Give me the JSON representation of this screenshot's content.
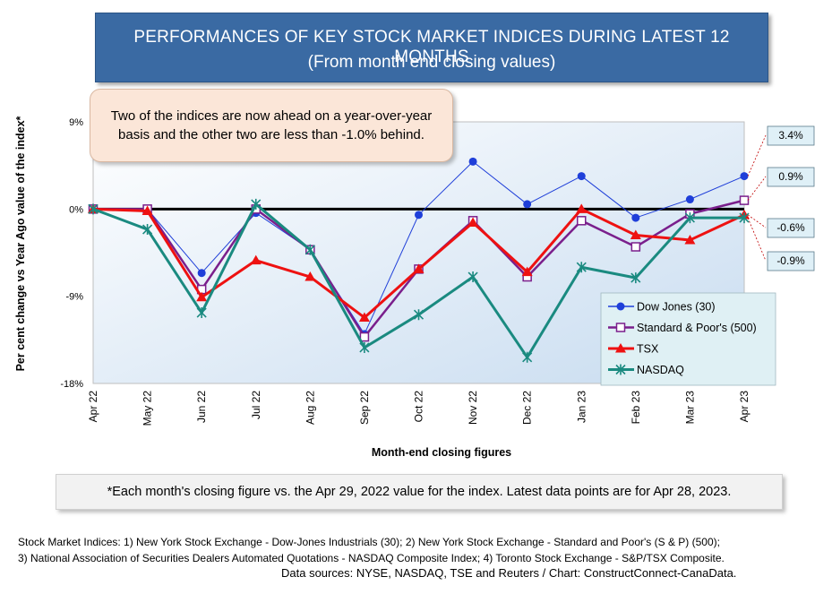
{
  "header": {
    "title": "PERFORMANCES OF KEY STOCK MARKET INDICES DURING LATEST 12 MONTHS",
    "subtitle": "(From month end closing values)"
  },
  "callout": {
    "text": "Two of the indices are now ahead on a year-over-year basis and the other two are less than -1.0% behind."
  },
  "chart_data": {
    "type": "line",
    "ylabel": "Per cent change vs Year Ago value of the index*",
    "xlabel": "Month-end closing figures",
    "ylim": [
      -18,
      9
    ],
    "yticks": [
      9,
      0,
      -9,
      -18
    ],
    "ytick_labels": [
      "9%",
      "0%",
      "-9%",
      "-18%"
    ],
    "categories": [
      "Apr 22",
      "May 22",
      "Jun 22",
      "Jul 22",
      "Aug 22",
      "Sep 22",
      "Oct 22",
      "Nov 22",
      "Dec 22",
      "Jan 23",
      "Feb 23",
      "Mar 23",
      "Apr 23"
    ],
    "series": [
      {
        "name": "Dow Jones (30)",
        "color": "#1f3fd9",
        "marker": "circle",
        "width": 1,
        "values": [
          0,
          0,
          -6.6,
          -0.4,
          -4.2,
          -12.9,
          -0.6,
          4.9,
          0.5,
          3.4,
          -0.9,
          1.0,
          3.4
        ]
      },
      {
        "name": "Standard & Poor's (500)",
        "color": "#7a1f8c",
        "marker": "square",
        "width": 2.5,
        "values": [
          0,
          0,
          -8.3,
          0,
          -4.2,
          -13.2,
          -6.2,
          -1.2,
          -7.0,
          -1.2,
          -3.9,
          -0.5,
          0.9
        ]
      },
      {
        "name": "TSX",
        "color": "#ee1111",
        "marker": "triangle",
        "width": 3,
        "values": [
          0,
          -0.2,
          -9.1,
          -5.3,
          -7.0,
          -11.2,
          -6.2,
          -1.4,
          -6.5,
          0,
          -2.7,
          -3.2,
          -0.6
        ]
      },
      {
        "name": "NASDAQ",
        "color": "#1a8a80",
        "marker": "x",
        "width": 3,
        "values": [
          0,
          -2.1,
          -10.7,
          0.5,
          -4.2,
          -14.3,
          -10.9,
          -7.0,
          -15.3,
          -6.0,
          -7.1,
          -0.9,
          -0.9
        ]
      }
    ],
    "end_labels": [
      "3.4%",
      "0.9%",
      "-0.6%",
      "-0.9%"
    ],
    "legend_position": "bottom-right"
  },
  "footnote": "*Each month's closing figure vs. the Apr 29, 2022 value for the index. Latest data points are for Apr 28, 2023.",
  "sources": {
    "line1": "Stock Market Indices: 1) New York Stock Exchange - Dow-Jones Industrials (30); 2) New York Stock Exchange - Standard and Poor's (S & P) (500);",
    "line2": "3) National Association of Securities Dealers Automated Quotations - NASDAQ Composite Index; 4) Toronto Stock Exchange - S&P/TSX Composite.",
    "line3": "Data sources: NYSE, NASDAQ, TSE and Reuters / Chart: ConstructConnect-CanaData."
  }
}
